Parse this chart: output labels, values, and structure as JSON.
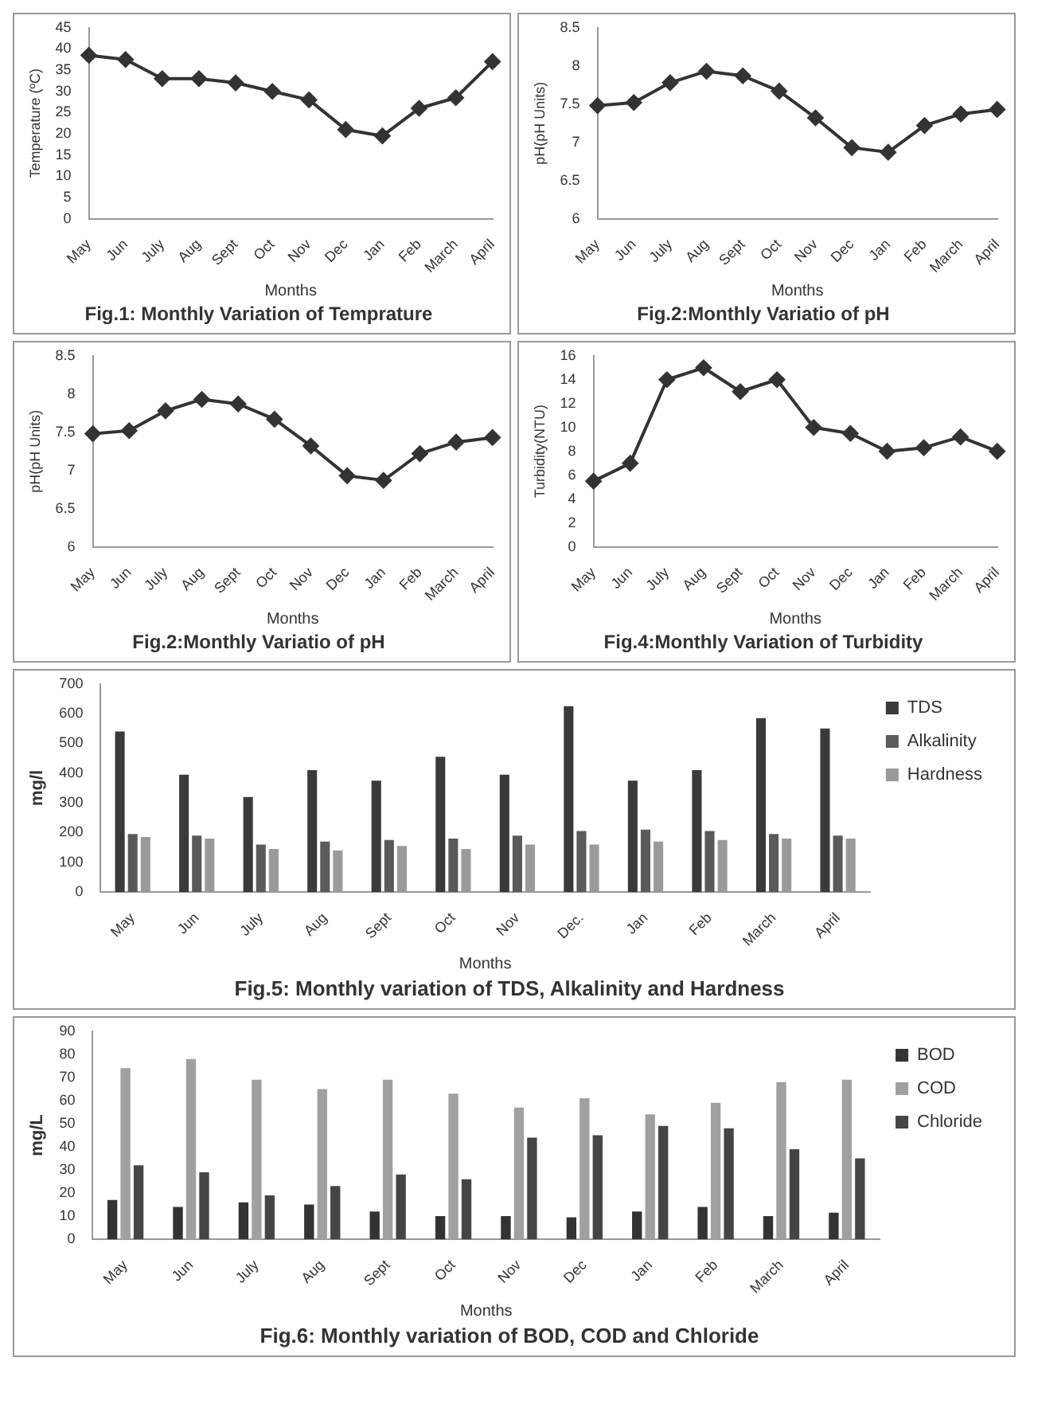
{
  "chart_data": [
    {
      "type": "line",
      "title": "Fig.1: Monthly Variation of Temprature",
      "xlabel": "Months",
      "ylabel": "Temperature (ºC)",
      "categories": [
        "May",
        "Jun",
        "July",
        "Aug",
        "Sept",
        "Oct",
        "Nov",
        "Dec",
        "Jan",
        "Feb",
        "March",
        "April"
      ],
      "values": [
        38.5,
        37.5,
        33,
        33,
        32,
        30,
        28,
        21,
        19.5,
        26,
        28.5,
        37
      ],
      "color": "#333333",
      "ylim": [
        0,
        45
      ],
      "yticks": [
        0,
        5,
        10,
        15,
        20,
        25,
        30,
        35,
        40,
        45
      ],
      "grid": false,
      "legend": false,
      "marker": "diamond",
      "line_style": "solid"
    },
    {
      "type": "line",
      "title": "Fig.2:Monthly Variatio of pH",
      "xlabel": "Months",
      "ylabel": "pH(pH Units)",
      "categories": [
        "May",
        "Jun",
        "July",
        "Aug",
        "Sept",
        "Oct",
        "Nov",
        "Dec",
        "Jan",
        "Feb",
        "March",
        "April"
      ],
      "values": [
        7.48,
        7.52,
        7.78,
        7.93,
        7.87,
        7.67,
        7.32,
        6.93,
        6.87,
        7.22,
        7.37,
        7.43
      ],
      "color": "#333333",
      "ylim": [
        6,
        8.5
      ],
      "yticks": [
        6,
        6.5,
        7,
        7.5,
        8,
        8.5
      ],
      "grid": false,
      "legend": false,
      "marker": "diamond",
      "line_style": "solid"
    },
    {
      "type": "line",
      "title": "Fig.2:Monthly Variatio of pH",
      "xlabel": "Months",
      "ylabel": "pH(pH Units)",
      "categories": [
        "May",
        "Jun",
        "July",
        "Aug",
        "Sept",
        "Oct",
        "Nov",
        "Dec",
        "Jan",
        "Feb",
        "March",
        "April"
      ],
      "values": [
        7.48,
        7.52,
        7.78,
        7.93,
        7.87,
        7.67,
        7.32,
        6.93,
        6.87,
        7.22,
        7.37,
        7.43
      ],
      "color": "#333333",
      "ylim": [
        6,
        8.5
      ],
      "yticks": [
        6,
        6.5,
        7,
        7.5,
        8,
        8.5
      ],
      "grid": false,
      "legend": false,
      "marker": "diamond",
      "line_style": "solid"
    },
    {
      "type": "line",
      "title": "Fig.4:Monthly Variation of Turbidity",
      "xlabel": "Months",
      "ylabel": "Turbidity(NTU)",
      "categories": [
        "May",
        "Jun",
        "July",
        "Aug",
        "Sept",
        "Oct",
        "Nov",
        "Dec",
        "Jan",
        "Feb",
        "March",
        "April"
      ],
      "values": [
        5.5,
        7,
        14,
        15,
        13,
        14,
        10,
        9.5,
        8,
        8.3,
        9.2,
        8
      ],
      "color": "#333333",
      "ylim": [
        0,
        16
      ],
      "yticks": [
        0,
        2,
        4,
        6,
        8,
        10,
        12,
        14,
        16
      ],
      "grid": false,
      "legend": false,
      "marker": "diamond",
      "line_style": "solid"
    },
    {
      "type": "bar",
      "title": "Fig.5: Monthly variation of TDS, Alkalinity and Hardness",
      "xlabel": "Months",
      "ylabel": "mg/l",
      "categories": [
        "May",
        "Jun",
        "July",
        "Aug",
        "Sept",
        "Oct",
        "Nov",
        "Dec.",
        "Jan",
        "Feb",
        "March",
        "April"
      ],
      "series": [
        {
          "name": "TDS",
          "color": "#3a3a3a",
          "values": [
            540,
            395,
            320,
            410,
            375,
            455,
            395,
            625,
            375,
            410,
            585,
            550
          ]
        },
        {
          "name": "Alkalinity",
          "color": "#5a5a5a",
          "values": [
            195,
            190,
            160,
            170,
            175,
            180,
            190,
            205,
            210,
            205,
            195,
            190
          ]
        },
        {
          "name": "Hardness",
          "color": "#9a9a9a",
          "values": [
            185,
            180,
            145,
            140,
            155,
            145,
            160,
            160,
            170,
            175,
            180,
            180
          ]
        }
      ],
      "ylim": [
        0,
        700
      ],
      "yticks": [
        0,
        100,
        200,
        300,
        400,
        500,
        600,
        700
      ],
      "grid": false,
      "legend": "top right"
    },
    {
      "type": "bar",
      "title": "Fig.6: Monthly variation of BOD, COD and Chloride",
      "xlabel": "Months",
      "ylabel": "mg/L",
      "categories": [
        "May",
        "Jun",
        "July",
        "Aug",
        "Sept",
        "Oct",
        "Nov",
        "Dec",
        "Jan",
        "Feb",
        "March",
        "April"
      ],
      "series": [
        {
          "name": "BOD",
          "color": "#333333",
          "values": [
            17,
            14,
            16,
            15,
            12,
            10,
            10,
            9.5,
            12,
            14,
            10,
            11.5
          ]
        },
        {
          "name": "COD",
          "color": "#a0a0a0",
          "values": [
            74,
            78,
            69,
            65,
            69,
            63,
            57,
            61,
            54,
            59,
            68,
            69
          ]
        },
        {
          "name": "Chloride",
          "color": "#454545",
          "values": [
            32,
            29,
            19,
            23,
            28,
            26,
            44,
            45,
            49,
            48,
            39,
            35
          ]
        }
      ],
      "ylim": [
        0,
        90
      ],
      "yticks": [
        0,
        10,
        20,
        30,
        40,
        50,
        60,
        70,
        80,
        90
      ],
      "grid": false,
      "legend": "top right"
    }
  ]
}
